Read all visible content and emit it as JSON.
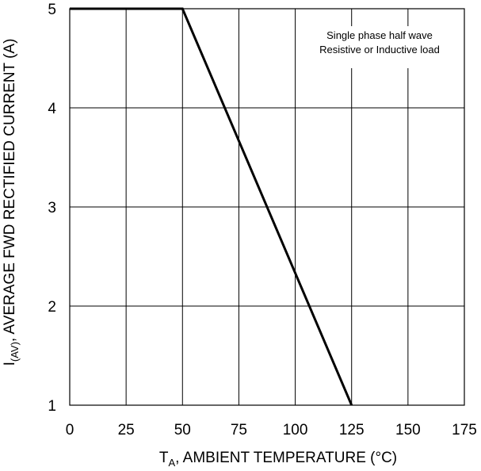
{
  "chart_data": {
    "type": "line",
    "title": "",
    "xlabel": {
      "main": "T",
      "sub": "A",
      "rest": ", AMBIENT TEMPERATURE (°C)"
    },
    "ylabel": {
      "main": "I",
      "sub": "(AV)",
      "rest": ", AVERAGE FWD RECTIFIED CURRENT (A)"
    },
    "xlim": [
      0,
      175
    ],
    "ylim": [
      1,
      5
    ],
    "xticks": [
      "0",
      "25",
      "50",
      "75",
      "100",
      "125",
      "150",
      "175"
    ],
    "yticks": [
      "1",
      "2",
      "3",
      "4",
      "5"
    ],
    "grid": true,
    "annotation": [
      "Single phase half wave",
      "Resistive or Inductive load"
    ],
    "series": [
      {
        "x": [
          0,
          50,
          125
        ],
        "y": [
          5,
          5,
          1
        ]
      }
    ]
  }
}
